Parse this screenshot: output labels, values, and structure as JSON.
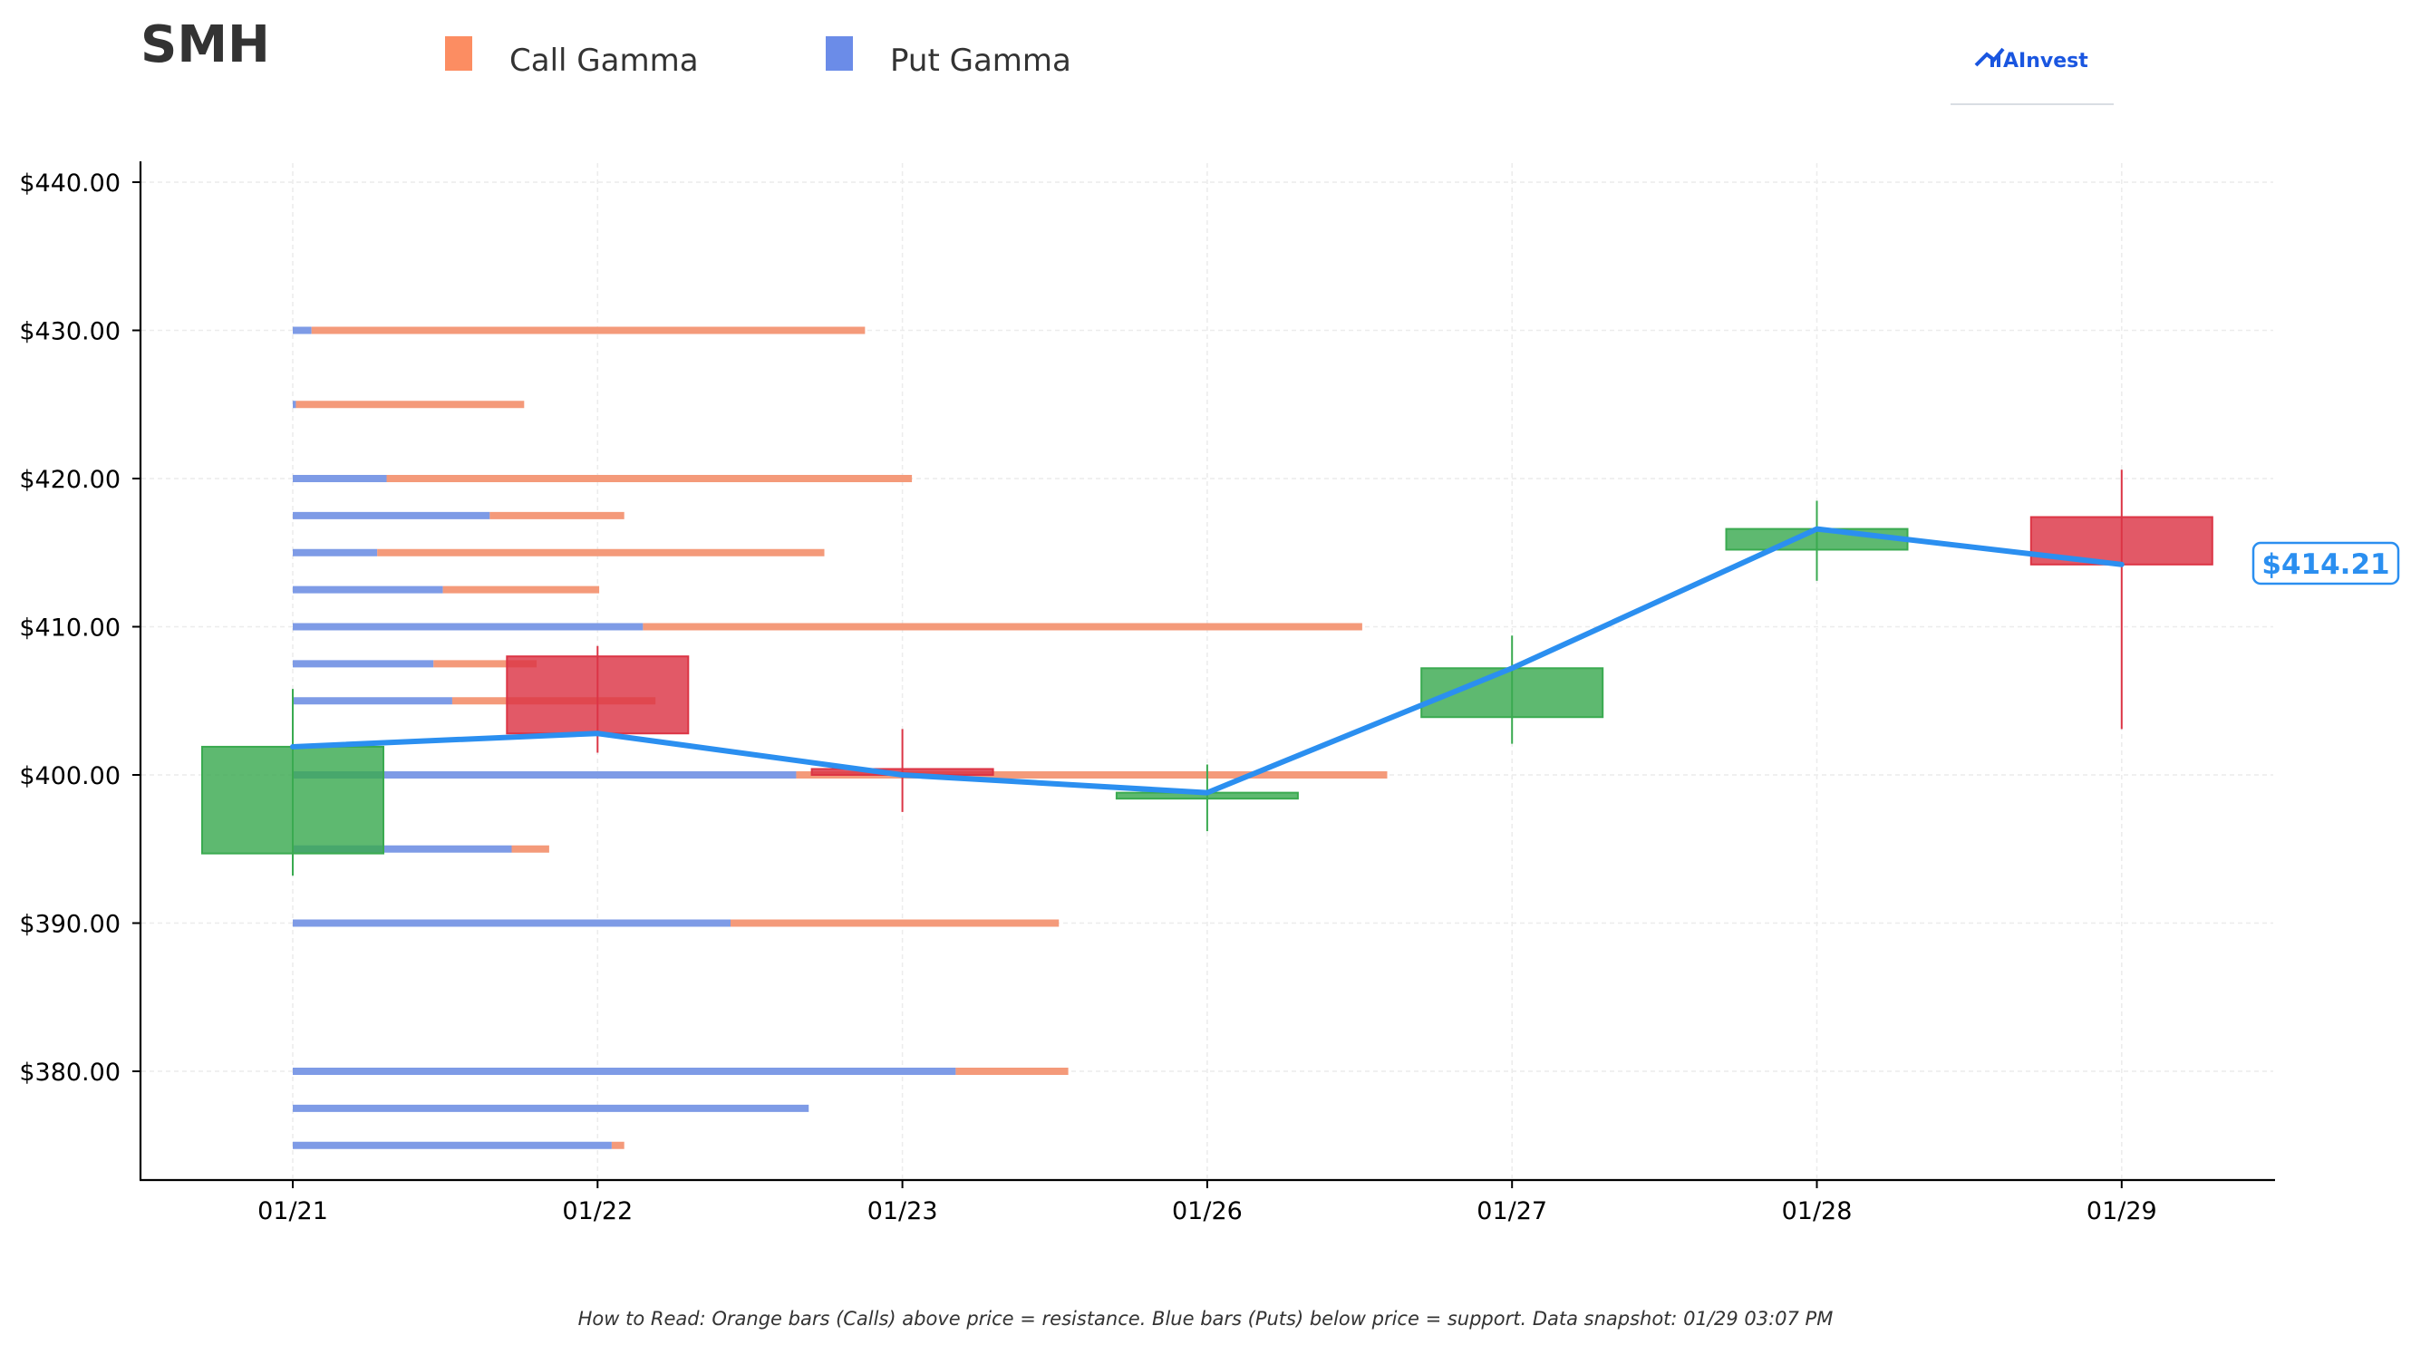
{
  "header": {
    "ticker": "SMH",
    "brand": "AInvest"
  },
  "legend": [
    {
      "label": "Call Gamma",
      "color": "#fc8d62"
    },
    {
      "label": "Put Gamma",
      "color": "#6b8ce8"
    }
  ],
  "footnote": "How to Read: Orange bars (Calls) above price = resistance. Blue bars (Puts) below price = support. Data snapshot: 01/29 03:07 PM",
  "chart_data": {
    "type": "candlestick",
    "categories": [
      "01/21",
      "01/22",
      "01/23",
      "01/26",
      "01/27",
      "01/28",
      "01/29"
    ],
    "ylim": [
      372.5,
      441.3
    ],
    "yticks": [
      380,
      390,
      400,
      410,
      420,
      430,
      440
    ],
    "ytick_labels": [
      "$380.00",
      "$390.00",
      "$400.00",
      "$410.00",
      "$420.00",
      "$430.00",
      "$440.00"
    ],
    "grid": true,
    "legend_position": "top-left",
    "candles": [
      {
        "date": "01/21",
        "open": 394.7,
        "high": 405.8,
        "low": 393.2,
        "close": 401.9
      },
      {
        "date": "01/22",
        "open": 408.0,
        "high": 408.7,
        "low": 401.5,
        "close": 402.8
      },
      {
        "date": "01/23",
        "open": 400.4,
        "high": 403.1,
        "low": 397.5,
        "close": 400.0
      },
      {
        "date": "01/26",
        "open": 398.4,
        "high": 400.7,
        "low": 396.2,
        "close": 398.8
      },
      {
        "date": "01/27",
        "open": 403.9,
        "high": 409.4,
        "low": 402.1,
        "close": 407.2
      },
      {
        "date": "01/28",
        "open": 415.2,
        "high": 418.5,
        "low": 413.1,
        "close": 416.6
      },
      {
        "date": "01/29",
        "open": 417.4,
        "high": 420.6,
        "low": 403.1,
        "close": 414.2
      }
    ],
    "close_line": {
      "color": "#2b8ff0",
      "values": [
        401.9,
        402.8,
        400.0,
        398.8,
        407.2,
        416.6,
        414.2
      ]
    },
    "current_price_label": "$414.21",
    "gamma_bars": {
      "units": "relative exposure",
      "strikes": [
        430,
        425,
        420,
        417.5,
        415,
        412.5,
        410,
        407.5,
        405,
        400,
        395,
        390,
        380,
        377.5,
        375
      ],
      "put_gamma": [
        0.06,
        0.01,
        0.3,
        0.63,
        0.27,
        0.48,
        1.12,
        0.45,
        0.51,
        1.61,
        0.7,
        1.4,
        2.12,
        1.65,
        1.02
      ],
      "call_gamma": [
        1.77,
        0.73,
        1.68,
        0.43,
        1.43,
        0.5,
        2.3,
        0.33,
        0.65,
        1.89,
        0.12,
        1.05,
        0.36,
        0.0,
        0.04
      ]
    },
    "colors": {
      "up": "#3aaa50",
      "down": "#dc3545",
      "call": "#f49a7a",
      "put": "#7e9be6",
      "grid": "#ececec",
      "price_label": "#2b8ff0"
    }
  }
}
